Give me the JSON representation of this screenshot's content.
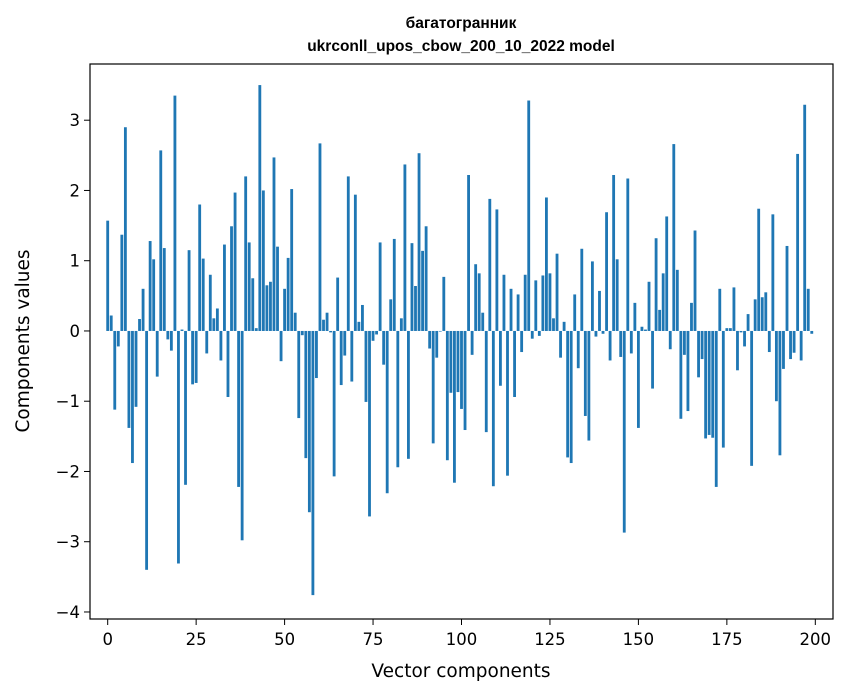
{
  "chart_data": {
    "type": "bar",
    "title_line1": "багатогранник",
    "title_line2": "ukrconll_upos_cbow_200_10_2022 model",
    "xlabel": "Vector components",
    "ylabel": "Components values",
    "xlim": [
      -5,
      205
    ],
    "ylim": [
      -4.1,
      3.8
    ],
    "xticks": [
      0,
      25,
      50,
      75,
      100,
      125,
      150,
      175,
      200
    ],
    "yticks": [
      -4,
      -3,
      -2,
      -1,
      0,
      1,
      2,
      3
    ],
    "grid": false,
    "bar_color": "#1f77b4",
    "x": [
      0,
      1,
      2,
      3,
      4,
      5,
      6,
      7,
      8,
      9,
      10,
      11,
      12,
      13,
      14,
      15,
      16,
      17,
      18,
      19,
      20,
      21,
      22,
      23,
      24,
      25,
      26,
      27,
      28,
      29,
      30,
      31,
      32,
      33,
      34,
      35,
      36,
      37,
      38,
      39,
      40,
      41,
      42,
      43,
      44,
      45,
      46,
      47,
      48,
      49,
      50,
      51,
      52,
      53,
      54,
      55,
      56,
      57,
      58,
      59,
      60,
      61,
      62,
      63,
      64,
      65,
      66,
      67,
      68,
      69,
      70,
      71,
      72,
      73,
      74,
      75,
      76,
      77,
      78,
      79,
      80,
      81,
      82,
      83,
      84,
      85,
      86,
      87,
      88,
      89,
      90,
      91,
      92,
      93,
      94,
      95,
      96,
      97,
      98,
      99,
      100,
      101,
      102,
      103,
      104,
      105,
      106,
      107,
      108,
      109,
      110,
      111,
      112,
      113,
      114,
      115,
      116,
      117,
      118,
      119,
      120,
      121,
      122,
      123,
      124,
      125,
      126,
      127,
      128,
      129,
      130,
      131,
      132,
      133,
      134,
      135,
      136,
      137,
      138,
      139,
      140,
      141,
      142,
      143,
      144,
      145,
      146,
      147,
      148,
      149,
      150,
      151,
      152,
      153,
      154,
      155,
      156,
      157,
      158,
      159,
      160,
      161,
      162,
      163,
      164,
      165,
      166,
      167,
      168,
      169,
      170,
      171,
      172,
      173,
      174,
      175,
      176,
      177,
      178,
      179,
      180,
      181,
      182,
      183,
      184,
      185,
      186,
      187,
      188,
      189,
      190,
      191,
      192,
      193,
      194,
      195,
      196,
      197,
      198,
      199
    ],
    "values": [
      1.57,
      0.22,
      -1.12,
      -0.22,
      1.37,
      2.9,
      -1.38,
      -1.88,
      -1.08,
      0.17,
      0.6,
      -3.4,
      1.28,
      1.02,
      -0.65,
      2.57,
      1.18,
      -0.12,
      -0.28,
      3.35,
      -3.31,
      0.02,
      -2.19,
      1.15,
      -0.76,
      -0.74,
      1.8,
      1.03,
      -0.32,
      0.8,
      0.18,
      0.32,
      -0.42,
      1.23,
      -0.94,
      1.49,
      1.97,
      -2.22,
      -2.98,
      2.2,
      1.26,
      0.75,
      0.04,
      3.5,
      2.0,
      0.65,
      0.7,
      2.47,
      1.2,
      -0.43,
      0.6,
      1.04,
      2.02,
      0.26,
      -1.24,
      -0.06,
      -1.81,
      -2.58,
      -3.76,
      -0.67,
      2.67,
      0.16,
      0.26,
      -0.02,
      -2.07,
      0.76,
      -0.77,
      -0.35,
      2.2,
      -0.72,
      1.94,
      0.13,
      0.37,
      -1.01,
      -2.64,
      -0.14,
      -0.05,
      1.26,
      -0.48,
      -2.31,
      0.45,
      1.31,
      -1.94,
      0.18,
      2.37,
      -1.82,
      1.25,
      0.64,
      2.53,
      1.14,
      1.49,
      -0.25,
      -1.6,
      -0.38,
      0.0,
      0.77,
      -1.84,
      -0.88,
      -2.16,
      -0.87,
      -1.11,
      -1.41,
      2.22,
      -0.34,
      0.95,
      0.82,
      0.26,
      -1.44,
      1.88,
      -2.21,
      1.73,
      -0.78,
      0.8,
      -2.06,
      0.6,
      -0.94,
      0.52,
      -0.3,
      0.8,
      3.28,
      -0.11,
      0.72,
      -0.07,
      0.79,
      1.9,
      0.82,
      0.18,
      1.1,
      -0.38,
      0.13,
      -1.8,
      -1.88,
      0.52,
      -0.53,
      1.17,
      -1.21,
      -1.56,
      0.99,
      -0.08,
      0.57,
      -0.04,
      1.69,
      -0.42,
      2.22,
      1.02,
      -0.37,
      -2.87,
      2.17,
      -0.32,
      0.4,
      -1.38,
      0.06,
      0.02,
      0.7,
      -0.82,
      1.32,
      0.3,
      0.82,
      1.63,
      -0.26,
      2.66,
      0.87,
      -1.25,
      -0.34,
      -1.14,
      0.4,
      1.43,
      -0.66,
      -0.4,
      -1.53,
      -1.48,
      -1.52,
      -2.22,
      0.6,
      -1.66,
      0.04,
      0.04,
      0.62,
      -0.56,
      -0.02,
      -0.22,
      0.24,
      -1.92,
      0.45,
      1.74,
      0.48,
      0.55,
      -0.3,
      1.66,
      -1.0,
      -1.77,
      -0.54,
      1.21,
      -0.4,
      -0.31,
      2.52,
      -0.42,
      3.22,
      0.6,
      -0.04
    ]
  }
}
